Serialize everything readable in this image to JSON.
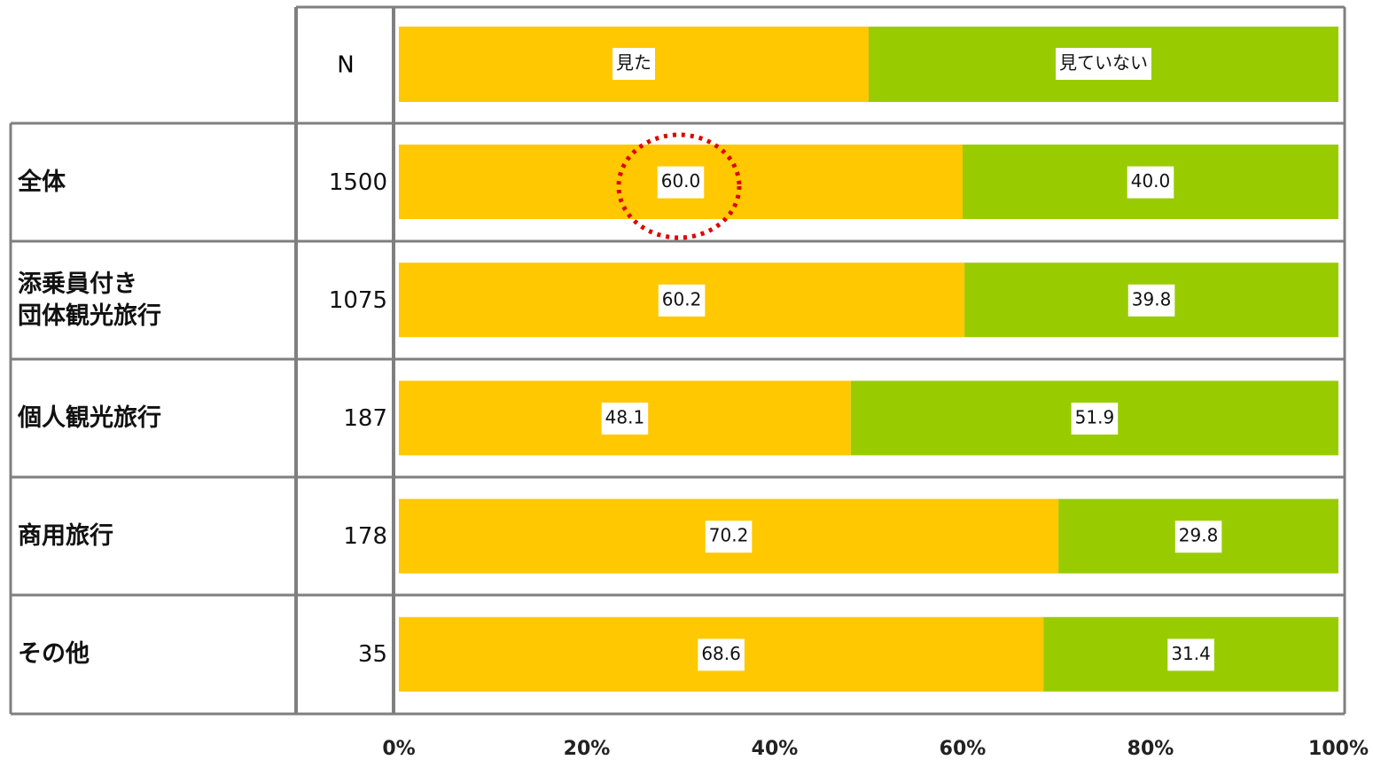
{
  "chart_data": {
    "type": "bar",
    "horizontal": true,
    "stacked": true,
    "n_header": "N",
    "categories": [
      "全体",
      "添乗員付き\n団体観光旅行",
      "個人観光旅行",
      "商用旅行",
      "その他"
    ],
    "n": [
      1500,
      1075,
      187,
      178,
      35
    ],
    "series": [
      {
        "name": "見た",
        "color": "#FFC800",
        "values": [
          60,
          60.2,
          48.1,
          70.2,
          68.6
        ],
        "value_labels": [
          "60.0",
          "60.2",
          "48.1",
          "70.2",
          "68.6"
        ]
      },
      {
        "name": "見ていない",
        "color": "#99CC00",
        "values": [
          40,
          39.8,
          51.9,
          29.8,
          31.4
        ],
        "value_labels": [
          "40.0",
          "39.8",
          "51.9",
          "29.8",
          "31.4"
        ]
      }
    ],
    "xlim": [
      0,
      100
    ],
    "xticks": [
      {
        "value": 0,
        "label": "0%"
      },
      {
        "value": 20,
        "label": "20%"
      },
      {
        "value": 40,
        "label": "40%"
      },
      {
        "value": 60,
        "label": "60%"
      },
      {
        "value": 80,
        "label": "80%"
      },
      {
        "value": 100,
        "label": "100%"
      }
    ]
  }
}
